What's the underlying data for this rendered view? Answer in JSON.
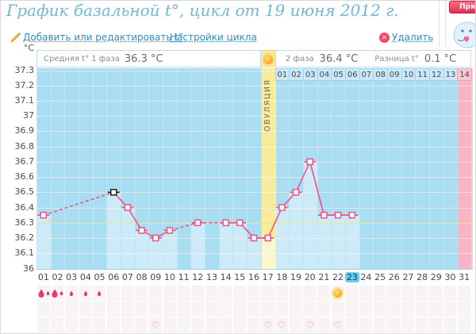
{
  "page": {
    "title": "График базальной t°, цикл от 19 июня 2012 г."
  },
  "toolbar": {
    "add_edit": "Добавить или редактировать t°",
    "cycle_settings": "Настройки цикла",
    "delete": "Удалить"
  },
  "sidebar": {
    "live_button_label": "Пря"
  },
  "summary": {
    "phase1_label": "Средняя t° 1 фаза",
    "phase1_value": "36.3 °C",
    "phase2_label": "2 фаза",
    "phase2_value": "36.4 °C",
    "diff_label": "Разница t°",
    "diff_value": "0.1 °C"
  },
  "icons": {
    "edit": "pencil-icon",
    "delete": "circle-x-icon",
    "delete_glyph": "✕",
    "ovulation": "sun-icon",
    "menstruation": "droplet-icon",
    "intercourse": "heart-icon",
    "heart_glyph": "♡"
  },
  "chart_data": {
    "type": "line",
    "title": "График базальной t°, цикл от 19 июня 2012 г.",
    "unit_label": "°C",
    "ylim": [
      36.0,
      37.3
    ],
    "ytick_step": 0.1,
    "yticks": [
      "37.3",
      "37.2",
      "37.1",
      "37",
      "36.9",
      "36.8",
      "36.7",
      "36.6",
      "36.5",
      "36.4",
      "36.3",
      "36.2",
      "36.1",
      "36"
    ],
    "days": [
      "01",
      "02",
      "03",
      "04",
      "05",
      "06",
      "07",
      "08",
      "09",
      "10",
      "11",
      "12",
      "13",
      "14",
      "15",
      "16",
      "17",
      "18",
      "19",
      "20",
      "21",
      "22",
      "23",
      "24",
      "25",
      "26",
      "27",
      "28",
      "29",
      "30",
      "31"
    ],
    "temps": [
      36.35,
      null,
      null,
      null,
      null,
      36.5,
      36.4,
      36.25,
      36.2,
      36.25,
      null,
      36.3,
      null,
      36.3,
      36.3,
      36.2,
      36.2,
      36.4,
      36.5,
      36.7,
      36.35,
      36.35,
      36.35,
      null,
      null,
      null,
      null,
      null,
      null,
      null,
      null
    ],
    "selected_day": 6,
    "today_day": 23,
    "ovulation_day": 17,
    "ovulation_label": "ОВУЛЯЦИЯ",
    "coverline": 36.3,
    "phase2_day_labels": [
      "01",
      "02",
      "03",
      "04",
      "05",
      "06",
      "07",
      "08",
      "09",
      "10",
      "11",
      "12",
      "13",
      "14"
    ],
    "events": {
      "menstruation": [
        {
          "day": 1,
          "size": "large"
        },
        {
          "day": 2,
          "size": "large"
        },
        {
          "day": 3,
          "size": "small"
        },
        {
          "day": 4,
          "size": "small"
        },
        {
          "day": 5,
          "size": "small"
        }
      ],
      "sun_day": 22,
      "hearts": [
        9,
        17,
        18,
        20,
        22
      ]
    },
    "legend": "off",
    "grid": "dotted-horizontal",
    "colors": {
      "line": "#ee5288",
      "marker_fill": "#ffffff",
      "selected_marker": "#1f1f1f",
      "plot_bg": "#a9ddf2",
      "recorded_fill": "#cdeaf8",
      "ovulation_col": "#f8eb9b",
      "ovulation_fill": "#fcf6cc",
      "phase2_end_col": "#f9b5c6",
      "coverline": "#eee594",
      "today_highlight": "#63cdf8",
      "title": "#74b6d7",
      "link": "#2e8fbf"
    }
  }
}
